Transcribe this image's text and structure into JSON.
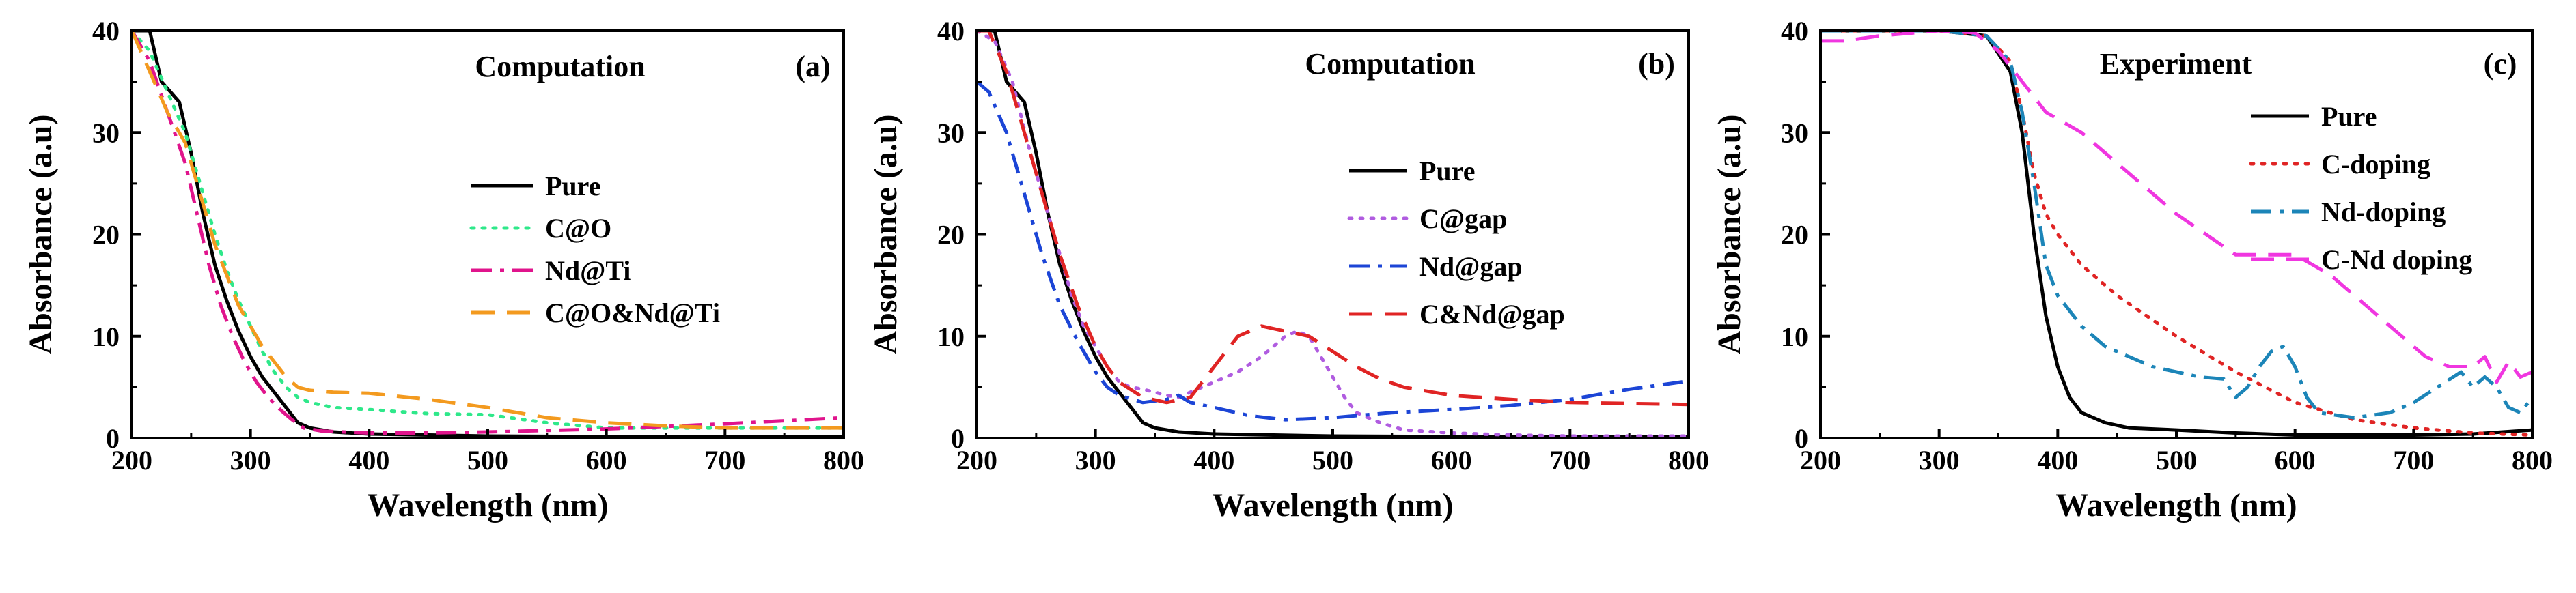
{
  "chart_data": [
    {
      "type": "line",
      "title": "Computation",
      "panel_label": "(a)",
      "xlabel": "Wavelength (nm)",
      "ylabel": "Absorbance (a.u)",
      "xlim": [
        200,
        800
      ],
      "ylim": [
        0,
        40
      ],
      "xticks": [
        "200",
        "300",
        "400",
        "500",
        "600",
        "700",
        "800"
      ],
      "yticks": [
        "0",
        "10",
        "20",
        "30",
        "40"
      ],
      "legend_position": "middle-right",
      "series": [
        {
          "name": "Pure",
          "color": "#000000",
          "dash": "solid",
          "x": [
            200,
            215,
            225,
            240,
            250,
            260,
            270,
            280,
            290,
            300,
            310,
            320,
            330,
            340,
            350,
            370,
            400,
            450,
            500,
            600,
            700,
            800
          ],
          "y": [
            40,
            40,
            35,
            33,
            28,
            22,
            17,
            13.5,
            10.5,
            8,
            6,
            4.5,
            3,
            1.5,
            1.0,
            0.6,
            0.4,
            0.3,
            0.2,
            0.15,
            0.1,
            0.1
          ]
        },
        {
          "name": "C@O",
          "color": "#2ee88a",
          "dash": "dot",
          "x": [
            200,
            215,
            230,
            245,
            260,
            270,
            280,
            290,
            300,
            310,
            320,
            330,
            340,
            350,
            370,
            400,
            450,
            500,
            550,
            600,
            700,
            800
          ],
          "y": [
            40,
            38,
            34,
            30,
            24,
            20,
            16.5,
            13.5,
            11,
            8.5,
            6.5,
            5,
            4,
            3.5,
            3.0,
            2.8,
            2.4,
            2.3,
            1.5,
            1.0,
            1.0,
            1.0
          ]
        },
        {
          "name": "Nd@Ti",
          "color": "#e0148c",
          "dash": "dashdot",
          "x": [
            200,
            215,
            230,
            245,
            255,
            265,
            275,
            285,
            295,
            305,
            315,
            325,
            335,
            345,
            360,
            400,
            450,
            500,
            600,
            700,
            800
          ],
          "y": [
            40,
            37,
            32,
            27,
            22,
            17,
            13,
            10,
            7.5,
            5.5,
            4,
            2.8,
            1.8,
            1.0,
            0.7,
            0.5,
            0.5,
            0.6,
            0.9,
            1.4,
            2.0
          ]
        },
        {
          "name": "C@O&Nd@Ti",
          "color": "#f39a1f",
          "dash": "dash",
          "x": [
            200,
            215,
            230,
            245,
            260,
            270,
            280,
            290,
            300,
            310,
            320,
            330,
            340,
            350,
            370,
            400,
            450,
            500,
            550,
            600,
            650,
            700,
            800
          ],
          "y": [
            40,
            36,
            32,
            29,
            23,
            19,
            16,
            13,
            11,
            9,
            7.5,
            6,
            5,
            4.7,
            4.5,
            4.4,
            3.8,
            3.0,
            2.0,
            1.5,
            1.2,
            1.0,
            1.0
          ]
        }
      ]
    },
    {
      "type": "line",
      "title": "Computation",
      "panel_label": "(b)",
      "xlabel": "Wavelength (nm)",
      "ylabel": "Absorbance (a.u)",
      "xlim": [
        200,
        800
      ],
      "ylim": [
        0,
        40
      ],
      "xticks": [
        "200",
        "300",
        "400",
        "500",
        "600",
        "700",
        "800"
      ],
      "yticks": [
        "0",
        "10",
        "20",
        "30",
        "40"
      ],
      "legend_position": "middle-right",
      "series": [
        {
          "name": "Pure",
          "color": "#000000",
          "dash": "solid",
          "x": [
            200,
            215,
            225,
            240,
            250,
            260,
            270,
            280,
            290,
            300,
            310,
            320,
            330,
            340,
            350,
            370,
            400,
            450,
            500,
            600,
            700,
            800
          ],
          "y": [
            40,
            40,
            35,
            33,
            28,
            22,
            17,
            13.5,
            10.5,
            8,
            6,
            4.5,
            3,
            1.5,
            1.0,
            0.6,
            0.4,
            0.3,
            0.2,
            0.15,
            0.1,
            0.1
          ]
        },
        {
          "name": "C@gap",
          "color": "#b05ce0",
          "dash": "dot",
          "x": [
            200,
            215,
            230,
            245,
            260,
            270,
            280,
            290,
            300,
            310,
            320,
            330,
            340,
            350,
            360,
            370,
            380,
            400,
            420,
            440,
            460,
            470,
            480,
            490,
            500,
            510,
            520,
            540,
            560,
            600,
            650,
            700,
            800
          ],
          "y": [
            40,
            39,
            35,
            28,
            22,
            18,
            14,
            11,
            9,
            7,
            5.5,
            5,
            4.8,
            4.5,
            4.2,
            4.0,
            4.5,
            5.5,
            6.5,
            8,
            10,
            10.5,
            10,
            8,
            6,
            4,
            2.5,
            1.5,
            0.8,
            0.5,
            0.3,
            0.2,
            0.2
          ]
        },
        {
          "name": "Nd@gap",
          "color": "#1c45d6",
          "dash": "dashdot",
          "x": [
            200,
            210,
            225,
            240,
            255,
            270,
            285,
            300,
            310,
            320,
            340,
            360,
            370,
            380,
            400,
            430,
            460,
            500,
            550,
            600,
            650,
            700,
            750,
            800
          ],
          "y": [
            35,
            34,
            30,
            24,
            18,
            13,
            9.5,
            6.5,
            5,
            4.2,
            3.5,
            3.8,
            4.2,
            3.5,
            3,
            2.2,
            1.8,
            2.0,
            2.5,
            2.8,
            3.2,
            3.8,
            4.8,
            5.6
          ]
        },
        {
          "name": "C&Nd@gap",
          "color": "#e02424",
          "dash": "dash",
          "x": [
            200,
            210,
            225,
            240,
            255,
            270,
            285,
            300,
            310,
            320,
            340,
            360,
            380,
            400,
            420,
            440,
            460,
            480,
            500,
            520,
            540,
            560,
            600,
            650,
            700,
            750,
            800
          ],
          "y": [
            40,
            40,
            36,
            30,
            24,
            18,
            13,
            9,
            7,
            5.5,
            4,
            3.5,
            4,
            7,
            10,
            11,
            10.5,
            10,
            8.5,
            7,
            5.8,
            5,
            4.2,
            3.8,
            3.5,
            3.4,
            3.3
          ]
        }
      ]
    },
    {
      "type": "line",
      "title": "Experiment",
      "panel_label": "(c)",
      "xlabel": "Wavelength (nm)",
      "ylabel": "Absorbance (a.u)",
      "xlim": [
        200,
        800
      ],
      "ylim": [
        0,
        40
      ],
      "xticks": [
        "200",
        "300",
        "400",
        "500",
        "600",
        "700",
        "800"
      ],
      "yticks": [
        "0",
        "10",
        "20",
        "30",
        "40"
      ],
      "legend_position": "top-right",
      "series": [
        {
          "name": "Pure",
          "color": "#000000",
          "dash": "solid",
          "x": [
            200,
            250,
            300,
            340,
            360,
            370,
            380,
            390,
            400,
            410,
            420,
            440,
            460,
            500,
            550,
            600,
            650,
            700,
            750,
            800
          ],
          "y": [
            40,
            40,
            40,
            39.5,
            36,
            30,
            20,
            12,
            7,
            4,
            2.5,
            1.5,
            1.0,
            0.8,
            0.5,
            0.3,
            0.3,
            0.3,
            0.4,
            0.8
          ]
        },
        {
          "name": "C-doping",
          "color": "#e02424",
          "dash": "dot",
          "x": [
            200,
            250,
            300,
            340,
            360,
            370,
            380,
            390,
            400,
            420,
            450,
            500,
            550,
            600,
            650,
            700,
            750,
            800
          ],
          "y": [
            40,
            40,
            40,
            39.5,
            37,
            32,
            26,
            22,
            20,
            17,
            14,
            10,
            6.5,
            3.5,
            1.8,
            1.0,
            0.5,
            0.3
          ]
        },
        {
          "name": "Nd-doping",
          "color": "#1c85b8",
          "dash": "dashdot",
          "x": [
            200,
            250,
            300,
            340,
            360,
            370,
            380,
            390,
            400,
            420,
            440,
            460,
            480,
            500,
            520,
            540,
            550,
            560,
            570,
            580,
            590,
            600,
            610,
            620,
            650,
            680,
            700,
            720,
            740,
            750,
            760,
            770,
            780,
            790,
            800
          ],
          "y": [
            40,
            40,
            40,
            39.5,
            37,
            32,
            25,
            17,
            14,
            11,
            9,
            8,
            7,
            6.5,
            6,
            5.8,
            4,
            5,
            7,
            8.5,
            9,
            7,
            4,
            2.5,
            2,
            2.5,
            3.5,
            5,
            6.5,
            5,
            6,
            5,
            3,
            2.5,
            4
          ]
        },
        {
          "name": "C-Nd doping",
          "color": "#f036e0",
          "dash": "dash",
          "x": [
            200,
            220,
            250,
            300,
            330,
            350,
            370,
            390,
            420,
            450,
            500,
            550,
            600,
            630,
            660,
            690,
            710,
            730,
            750,
            760,
            770,
            780,
            790,
            800
          ],
          "y": [
            39,
            39,
            39.5,
            40,
            39.8,
            38,
            35,
            32,
            30,
            27,
            22,
            18,
            18,
            16,
            13,
            10,
            8,
            7,
            7,
            8,
            5.5,
            7.5,
            6,
            6.5
          ]
        }
      ]
    }
  ]
}
